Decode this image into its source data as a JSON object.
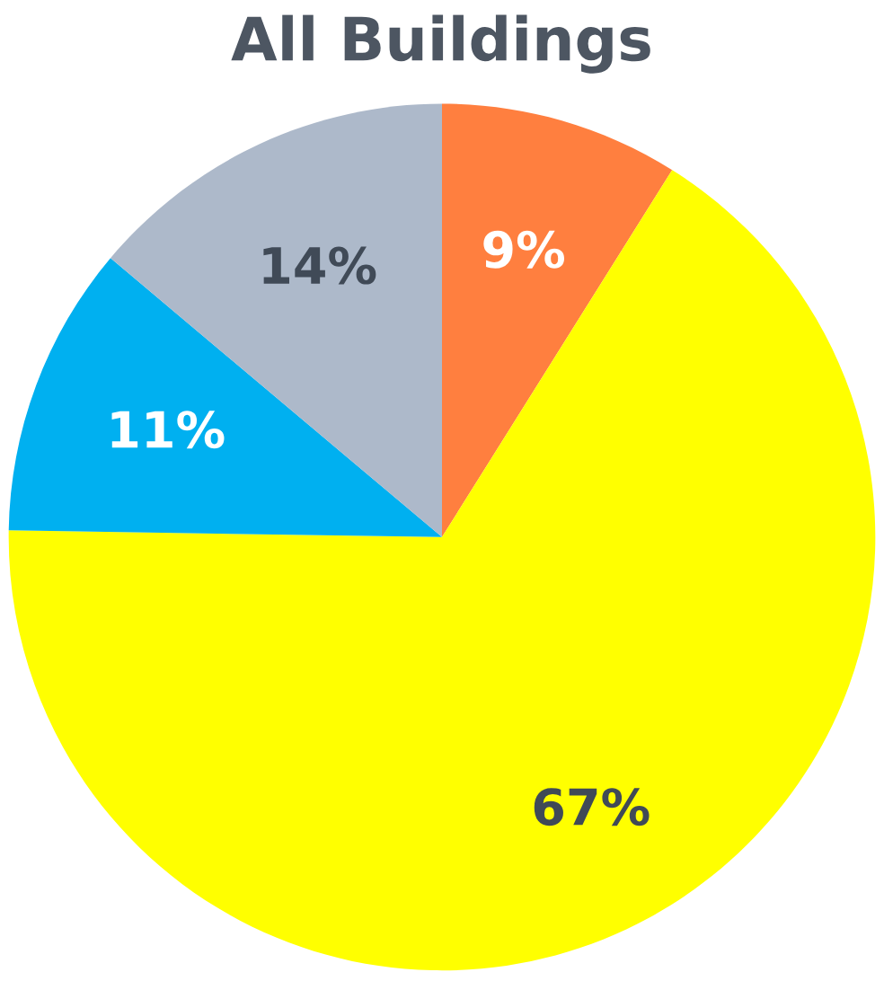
{
  "chart_data": {
    "type": "pie",
    "title": "All Buildings",
    "categories": [
      null,
      null,
      null,
      null
    ],
    "values": [
      9,
      67,
      11,
      14
    ],
    "colors": [
      "#ff7f3f",
      "#ffff00",
      "#00b0f0",
      "#adb9ca"
    ],
    "value_labels": [
      "9%",
      "67%",
      "11%",
      "14%"
    ],
    "legend": false
  }
}
